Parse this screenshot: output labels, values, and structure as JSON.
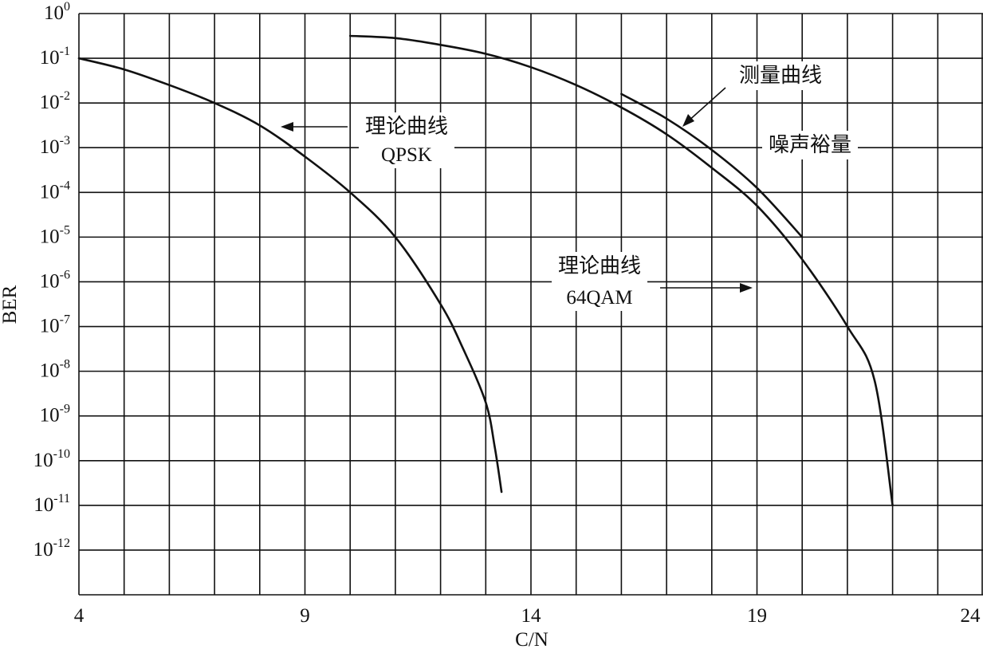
{
  "chart_data": {
    "type": "line",
    "title": "",
    "xlabel": "C/N",
    "ylabel": "BER",
    "xlim": [
      4,
      24
    ],
    "ylim_exponent": [
      -13,
      0
    ],
    "y_scale": "log",
    "grid": true,
    "x_minor_step": 1,
    "x_ticks": [
      4,
      9,
      14,
      19,
      24
    ],
    "x_tick_labels": [
      "4",
      "9",
      "14",
      "19",
      "24"
    ],
    "y_ticks": [
      0,
      -1,
      -2,
      -3,
      -4,
      -5,
      -6,
      -7,
      -8,
      -9,
      -10,
      -11,
      -12
    ],
    "y_tick_labels": [
      "10^0",
      "10^-1",
      "10^-2",
      "10^-3",
      "10^-4",
      "10^-5",
      "10^-6",
      "10^-7",
      "10^-8",
      "10^-9",
      "10^-10",
      "10^-11",
      "10^-12"
    ],
    "series": [
      {
        "name": "理论曲线 QPSK",
        "x": [
          4.0,
          5.0,
          6.0,
          7.0,
          8.0,
          9.0,
          10.0,
          11.0,
          12.0,
          12.5,
          13.0,
          13.2,
          13.35
        ],
        "y_exp": [
          -1.0,
          -1.25,
          -1.6,
          -2.0,
          -2.5,
          -3.2,
          -4.0,
          -5.0,
          -6.5,
          -7.5,
          -8.7,
          -9.7,
          -10.7
        ]
      },
      {
        "name": "理论曲线 64QAM",
        "x": [
          10.0,
          11.0,
          12.0,
          13.0,
          14.0,
          15.0,
          16.0,
          17.0,
          18.0,
          19.0,
          20.0,
          21.0,
          21.6,
          22.0
        ],
        "y_exp": [
          -0.5,
          -0.55,
          -0.7,
          -0.9,
          -1.2,
          -1.6,
          -2.1,
          -2.7,
          -3.45,
          -4.3,
          -5.5,
          -7.0,
          -8.2,
          -11.0
        ]
      },
      {
        "name": "测量曲线",
        "x": [
          16.0,
          17.0,
          18.0,
          19.0,
          20.0
        ],
        "y_exp": [
          -1.8,
          -2.35,
          -3.05,
          -3.9,
          -5.0
        ]
      }
    ],
    "annotations": [
      {
        "text": "理论曲线",
        "subtext": "QPSK"
      },
      {
        "text": "测量曲线",
        "subtext": ""
      },
      {
        "text": "噪声裕量",
        "subtext": ""
      },
      {
        "text": "理论曲线",
        "subtext": "64QAM"
      }
    ]
  }
}
